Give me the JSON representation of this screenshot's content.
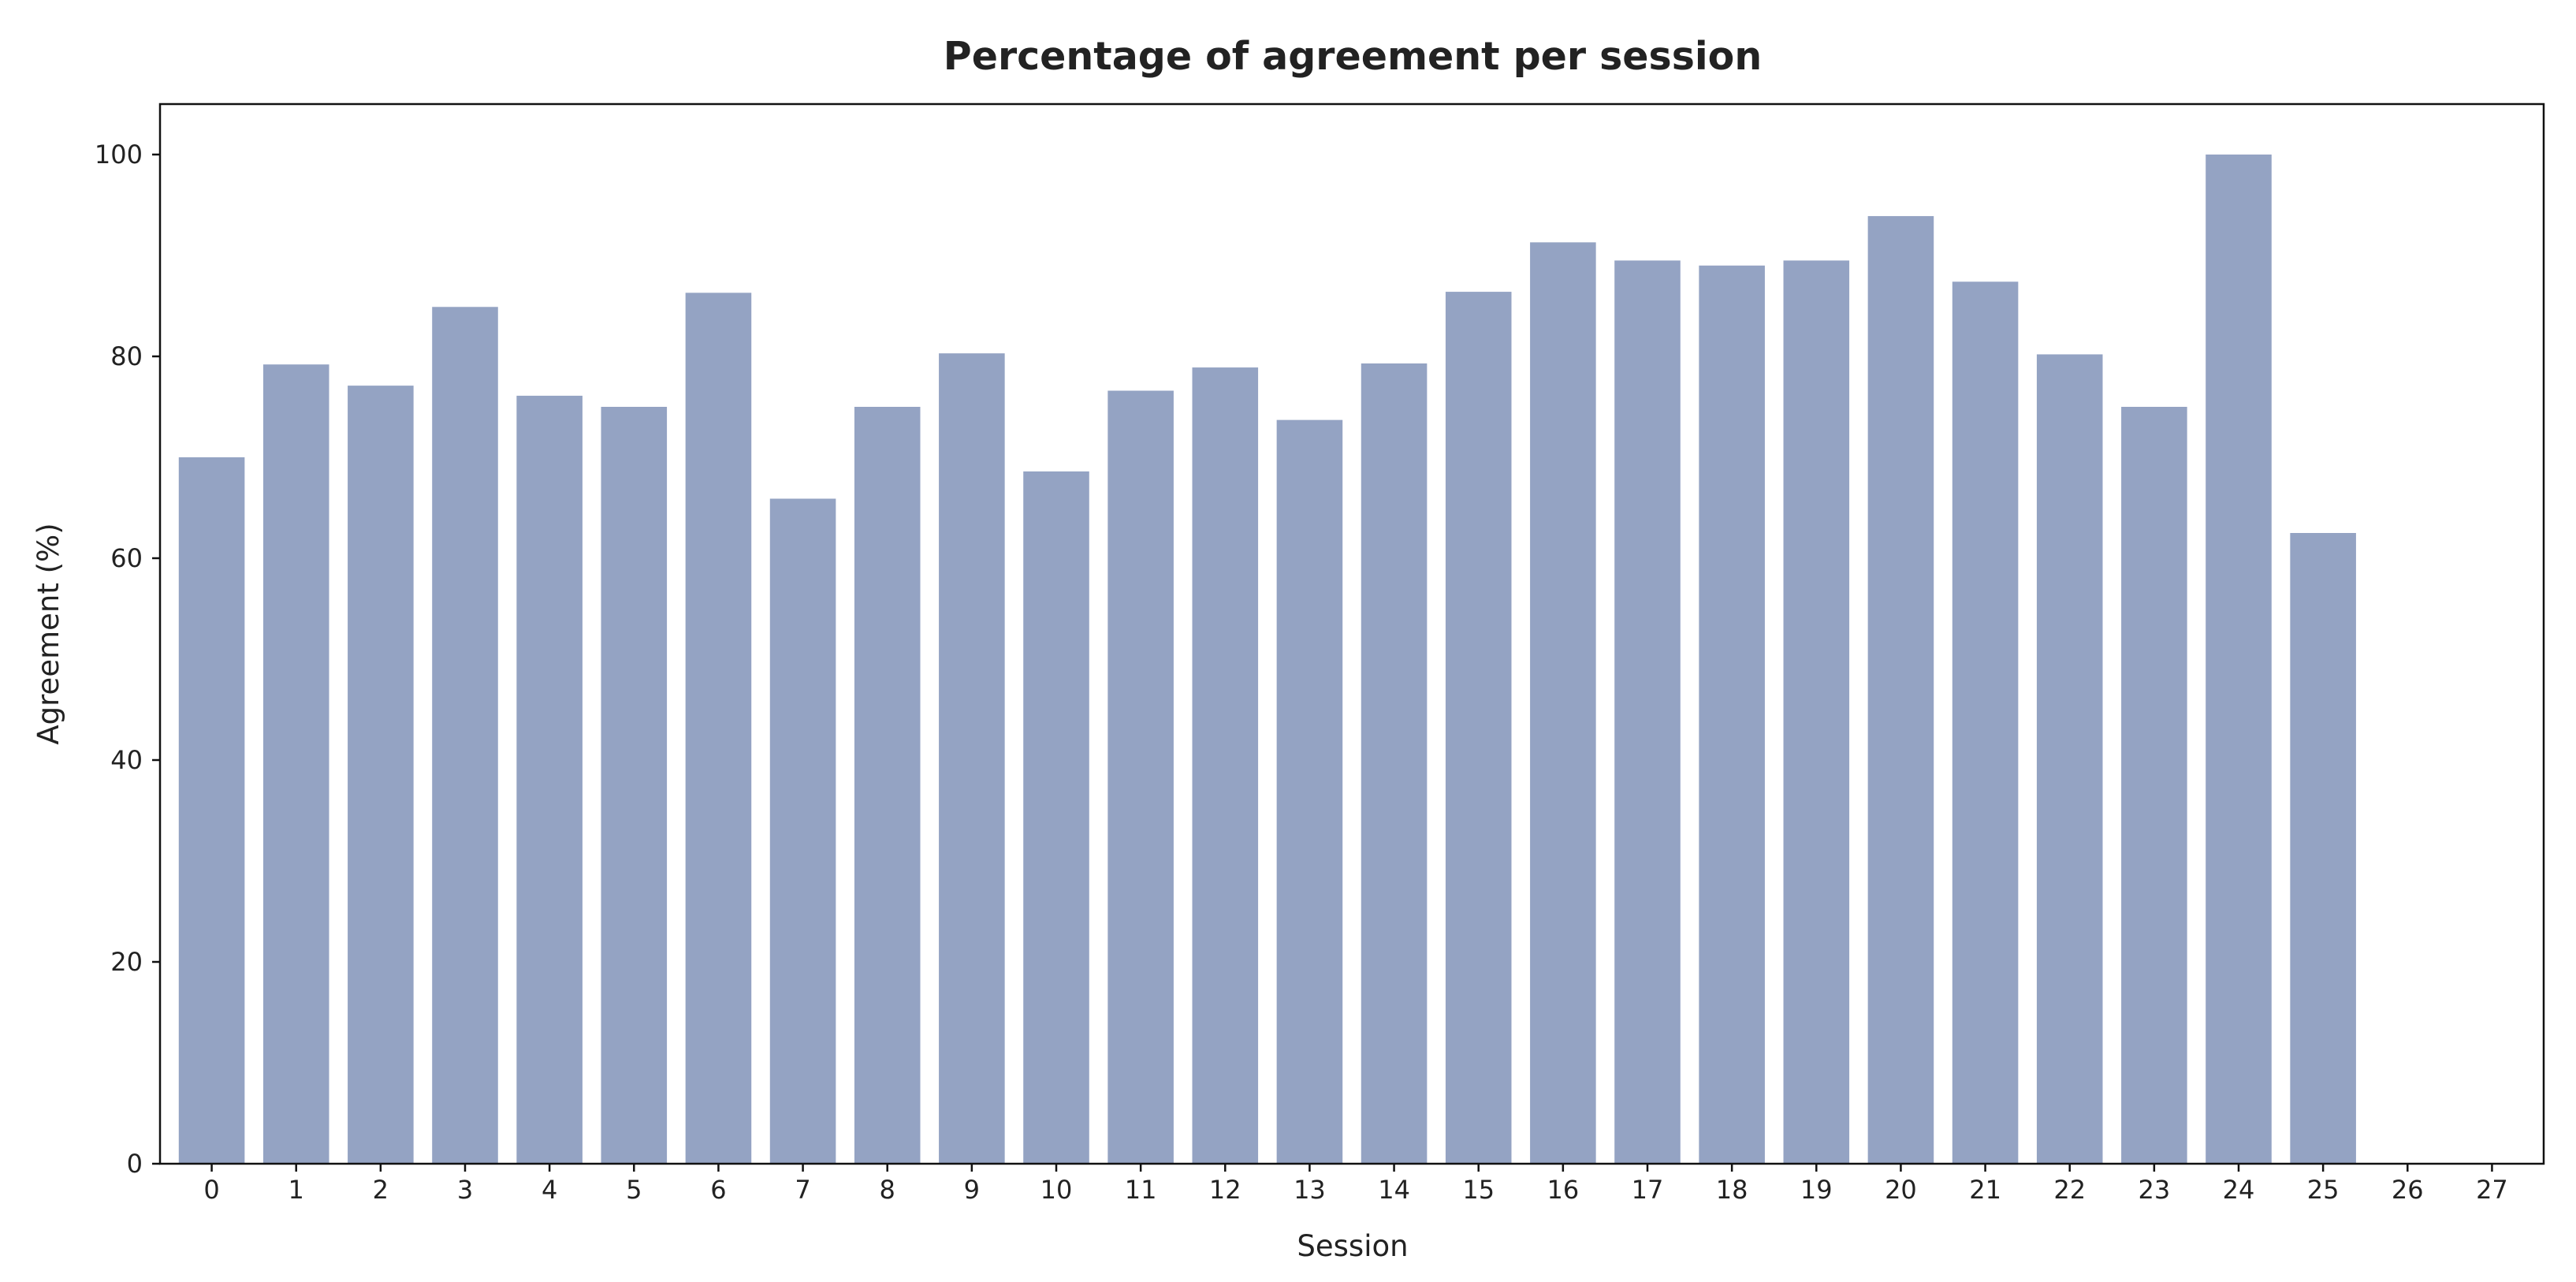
{
  "chart_data": {
    "type": "bar",
    "title": "Percentage of agreement per session",
    "xlabel": "Session",
    "ylabel": "Agreement (%)",
    "categories": [
      "0",
      "1",
      "2",
      "3",
      "4",
      "5",
      "6",
      "7",
      "8",
      "9",
      "10",
      "11",
      "12",
      "13",
      "14",
      "15",
      "16",
      "17",
      "18",
      "19",
      "20",
      "21",
      "22",
      "23",
      "24",
      "25",
      "26",
      "27"
    ],
    "values": [
      70,
      79.2,
      77.1,
      84.9,
      76.1,
      75,
      86.3,
      65.9,
      75,
      80.3,
      68.6,
      76.6,
      78.9,
      73.7,
      79.3,
      86.4,
      91.3,
      89.5,
      89,
      89.5,
      93.9,
      87.4,
      80.2,
      75,
      100,
      62.5,
      0,
      0
    ],
    "ylim": [
      0,
      105
    ],
    "yticks": [
      0,
      20,
      40,
      60,
      80,
      100
    ],
    "bar_color": "#94a3c3",
    "grid": false
  }
}
